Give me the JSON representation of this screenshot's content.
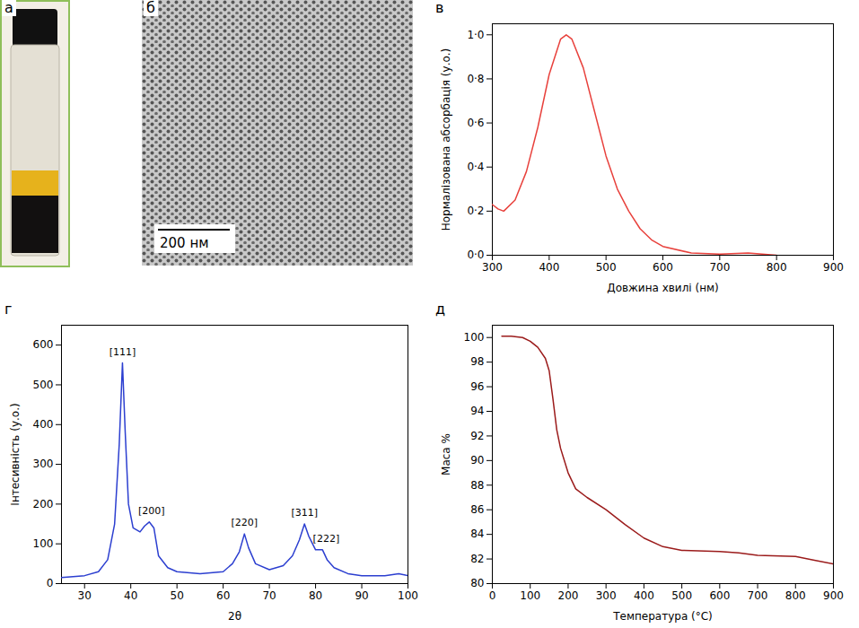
{
  "images": [
    {
      "title": "а"
    },
    {
      "title": "б",
      "scale_bar": "200 нм"
    }
  ],
  "chart_data": [
    {
      "type": "line",
      "title": "в",
      "x_label": "Довжина хвилі (нм)",
      "y_label": "Нормалізована абсорбація (у.о.)",
      "x": [
        300,
        310,
        320,
        340,
        360,
        380,
        400,
        420,
        430,
        440,
        460,
        480,
        500,
        520,
        540,
        560,
        580,
        600,
        650,
        700,
        750,
        800
      ],
      "values": [
        0.23,
        0.21,
        0.2,
        0.25,
        0.38,
        0.58,
        0.82,
        0.98,
        1.0,
        0.98,
        0.85,
        0.65,
        0.45,
        0.3,
        0.2,
        0.12,
        0.07,
        0.04,
        0.01,
        0.005,
        0.01,
        0.0
      ],
      "color": "#e8413c",
      "xlim": [
        300,
        900
      ],
      "xticks": [
        300,
        400,
        500,
        600,
        700,
        800,
        900
      ],
      "ylim": [
        0,
        1.05
      ],
      "yticks": [
        {
          "value": 0,
          "label": "0·0"
        },
        {
          "value": 0.2,
          "label": "0·2"
        },
        {
          "value": 0.4,
          "label": "0·4"
        },
        {
          "value": 0.6,
          "label": "0·6"
        },
        {
          "value": 0.8,
          "label": "0·8"
        },
        {
          "value": 1.0,
          "label": "1·0"
        }
      ]
    },
    {
      "type": "line",
      "title": "г",
      "x_label": "2θ",
      "y_label": "Інтесивність (у.о.)",
      "x": [
        25,
        30,
        33,
        35,
        36.5,
        37.5,
        38.2,
        38.8,
        39.5,
        40.5,
        42,
        43,
        44,
        45,
        46,
        48,
        50,
        55,
        60,
        62,
        63.5,
        64.6,
        65.5,
        67,
        70,
        73,
        75,
        76.5,
        77.6,
        78.5,
        80,
        81.5,
        82.5,
        84,
        87,
        90,
        95,
        98,
        100
      ],
      "values": [
        15,
        20,
        30,
        60,
        150,
        350,
        555,
        380,
        200,
        140,
        130,
        145,
        155,
        140,
        70,
        40,
        30,
        25,
        30,
        50,
        80,
        125,
        90,
        50,
        35,
        45,
        70,
        110,
        150,
        120,
        85,
        85,
        60,
        40,
        25,
        20,
        20,
        25,
        20
      ],
      "color": "#2c3fd0",
      "xlim": [
        25,
        100
      ],
      "xticks": [
        30,
        40,
        50,
        60,
        70,
        80,
        90,
        100
      ],
      "ylim": [
        0,
        650
      ],
      "yticks": [
        0,
        100,
        200,
        300,
        400,
        500,
        600
      ],
      "annotations": [
        {
          "text": "[111]",
          "x": 38.2,
          "y": 565
        },
        {
          "text": "[200]",
          "x": 44.5,
          "y": 165
        },
        {
          "text": "[220]",
          "x": 64.6,
          "y": 135
        },
        {
          "text": "[311]",
          "x": 77.6,
          "y": 160
        },
        {
          "text": "[222]",
          "x": 82.3,
          "y": 95
        }
      ]
    },
    {
      "type": "line",
      "title": "д",
      "x_label": "Температура (°С)",
      "y_label": "Маса %",
      "x": [
        25,
        50,
        80,
        100,
        120,
        140,
        150,
        160,
        170,
        180,
        200,
        220,
        250,
        300,
        350,
        400,
        450,
        500,
        600,
        650,
        700,
        800,
        850,
        900
      ],
      "values": [
        100.1,
        100.1,
        100,
        99.7,
        99.2,
        98.3,
        97.3,
        95,
        92.5,
        91,
        89,
        87.7,
        87,
        86,
        84.8,
        83.7,
        83,
        82.7,
        82.6,
        82.5,
        82.3,
        82.2,
        81.9,
        81.6
      ],
      "color": "#9b1b1b",
      "xlim": [
        0,
        900
      ],
      "xticks": [
        0,
        100,
        200,
        300,
        400,
        500,
        600,
        700,
        800,
        900
      ],
      "ylim": [
        80,
        101
      ],
      "yticks": [
        80,
        82,
        84,
        86,
        88,
        90,
        92,
        94,
        96,
        98,
        100
      ]
    }
  ]
}
